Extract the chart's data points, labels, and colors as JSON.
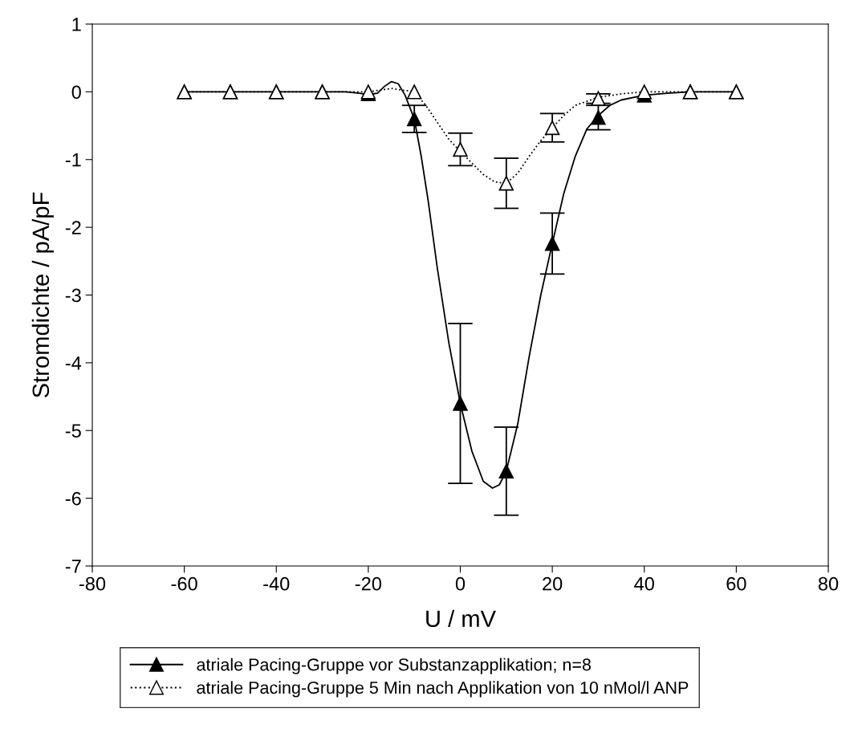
{
  "chart_data": {
    "type": "scatter",
    "xlabel": "U / mV",
    "ylabel": "Stromdichte / pA/pF",
    "x": [
      -60,
      -50,
      -40,
      -30,
      -20,
      -10,
      0,
      10,
      20,
      30,
      40,
      50,
      60
    ],
    "series": [
      {
        "name": "atriale Pacing-Gruppe vor Substanzapplikation; n=8",
        "color": "#000000",
        "marker": "triangle",
        "line_style": "solid",
        "values": [
          0,
          0,
          0,
          0,
          -0.03,
          -0.4,
          -4.6,
          -5.6,
          -2.24,
          -0.38,
          -0.05,
          0,
          0
        ],
        "errors": [
          null,
          null,
          null,
          null,
          null,
          0.2,
          1.18,
          0.65,
          0.45,
          0.18,
          null,
          null,
          null
        ]
      },
      {
        "name": "atriale Pacing-Gruppe 5 Min nach Applikation von 10 nMol/l ANP",
        "color": "#000000",
        "marker": "triangle",
        "line_style": "dotted",
        "values": [
          0,
          0,
          0,
          0,
          0,
          0,
          -0.85,
          -1.35,
          -0.53,
          -0.1,
          0,
          0,
          0
        ],
        "errors": [
          null,
          null,
          null,
          null,
          null,
          null,
          0.24,
          0.37,
          0.21,
          0.07,
          null,
          null,
          null
        ]
      },
      {
        "type": "line",
        "color": "#000000",
        "line_style": "solid",
        "x": [
          -60,
          -25,
          -22,
          -20,
          -18,
          -16.5,
          -15,
          -13.5,
          -12,
          -10,
          -8.5,
          -7,
          -5,
          -2.5,
          0,
          2.5,
          5,
          7,
          8.5,
          10,
          12.5,
          15,
          17.5,
          20,
          22.5,
          25,
          27.5,
          30,
          32.5,
          35,
          40,
          45,
          50,
          60
        ],
        "values": [
          0,
          0,
          -0.02,
          -0.04,
          -0.02,
          0.08,
          0.15,
          0.12,
          -0.05,
          -0.4,
          -0.95,
          -1.6,
          -2.6,
          -3.7,
          -4.6,
          -5.3,
          -5.75,
          -5.85,
          -5.8,
          -5.6,
          -4.9,
          -3.9,
          -3.0,
          -2.24,
          -1.5,
          -0.95,
          -0.55,
          -0.35,
          -0.2,
          -0.12,
          -0.05,
          -0.02,
          0,
          0
        ]
      },
      {
        "type": "line",
        "color": "#000000",
        "line_style": "dotted",
        "x": [
          -60,
          -20,
          -15,
          -10,
          -7.5,
          -5,
          -2.5,
          0,
          2.5,
          5,
          7.5,
          10,
          12.5,
          15,
          17.5,
          20,
          22.5,
          25,
          30,
          35,
          40,
          60
        ],
        "values": [
          0,
          0,
          0.05,
          0,
          -0.2,
          -0.45,
          -0.7,
          -0.88,
          -1.05,
          -1.22,
          -1.33,
          -1.35,
          -1.2,
          -0.95,
          -0.72,
          -0.53,
          -0.35,
          -0.2,
          -0.08,
          -0.03,
          0,
          0
        ]
      }
    ],
    "xlim": [
      -80,
      80
    ],
    "xticks": [
      -80,
      -60,
      -40,
      -20,
      0,
      20,
      40,
      60,
      80
    ],
    "ylim": [
      -7,
      1
    ],
    "yticks": [
      -7,
      -6,
      -5,
      -4,
      -3,
      -2,
      -1,
      0,
      1
    ],
    "grid": false,
    "legend": "bottom"
  }
}
